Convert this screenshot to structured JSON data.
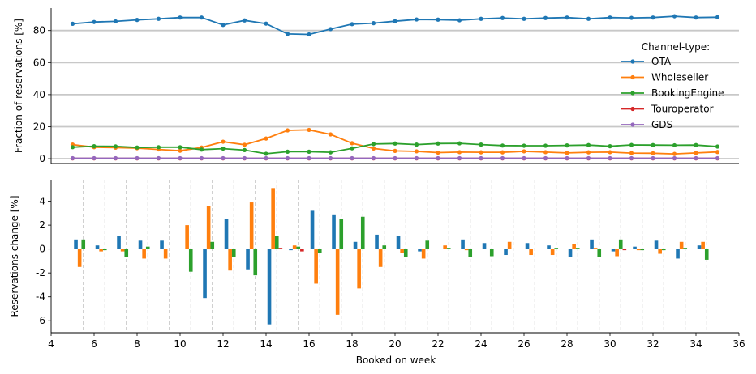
{
  "chart_data": [
    {
      "type": "line",
      "ylabel": "Fraction of reservations [%]",
      "xlim": [
        4,
        36
      ],
      "ylim": [
        -3,
        94
      ],
      "yticks": [
        0,
        20,
        40,
        60,
        80
      ],
      "grid": "horizontal",
      "legend_title": "Channel-type:",
      "legend_position": "right",
      "x": [
        5,
        6,
        7,
        8,
        9,
        10,
        11,
        12,
        13,
        14,
        15,
        16,
        17,
        18,
        19,
        20,
        21,
        22,
        23,
        24,
        25,
        26,
        27,
        28,
        29,
        30,
        31,
        32,
        33,
        34,
        35
      ],
      "series": [
        {
          "name": "OTA",
          "color": "#1f77b4",
          "values": [
            84.2,
            85.3,
            85.7,
            86.6,
            87.3,
            88.1,
            88.1,
            83.5,
            86.3,
            84.3,
            77.9,
            77.6,
            80.9,
            84.0,
            84.6,
            85.8,
            86.9,
            86.8,
            86.4,
            87.3,
            87.8,
            87.3,
            87.8,
            88.1,
            87.3,
            88.1,
            87.9,
            88.1,
            88.9,
            88.1,
            88.3
          ]
        },
        {
          "name": "Wholeseller",
          "color": "#ff7f0e",
          "values": [
            8.8,
            7.2,
            6.9,
            6.6,
            5.8,
            5.0,
            7.0,
            10.6,
            8.7,
            12.6,
            17.7,
            18.0,
            15.2,
            9.7,
            6.4,
            4.9,
            4.6,
            3.8,
            4.1,
            4.0,
            4.0,
            4.6,
            4.1,
            3.6,
            4.0,
            4.1,
            3.5,
            3.4,
            3.0,
            3.6,
            4.2
          ]
        },
        {
          "name": "BookingEngine",
          "color": "#2ca02c",
          "values": [
            7.2,
            7.8,
            7.7,
            7.0,
            7.2,
            7.2,
            5.7,
            6.3,
            5.4,
            3.1,
            4.4,
            4.4,
            4.0,
            6.5,
            9.2,
            9.5,
            8.8,
            9.5,
            9.6,
            8.8,
            8.2,
            8.1,
            8.1,
            8.3,
            8.5,
            7.8,
            8.6,
            8.5,
            8.4,
            8.5,
            7.6
          ]
        },
        {
          "name": "Touroperator",
          "color": "#d62728",
          "values": [
            0.2,
            0.2,
            0.2,
            0.2,
            0.2,
            0.2,
            0.2,
            0.2,
            0.2,
            0.2,
            0.2,
            0.2,
            0.2,
            0.2,
            0.2,
            0.2,
            0.2,
            0.2,
            0.2,
            0.2,
            0.2,
            0.2,
            0.2,
            0.2,
            0.2,
            0.2,
            0.2,
            0.2,
            0.2,
            0.2,
            0.2
          ]
        },
        {
          "name": "GDS",
          "color": "#9467bd",
          "values": [
            0.3,
            0.3,
            0.3,
            0.3,
            0.3,
            0.3,
            0.3,
            0.3,
            0.3,
            0.3,
            0.3,
            0.3,
            0.3,
            0.3,
            0.3,
            0.3,
            0.3,
            0.3,
            0.3,
            0.3,
            0.3,
            0.3,
            0.3,
            0.3,
            0.3,
            0.3,
            0.3,
            0.3,
            0.3,
            0.3,
            0.3
          ]
        }
      ]
    },
    {
      "type": "bar",
      "xlabel": "Booked on week",
      "ylabel": "Reservations change [%]",
      "xlim": [
        4,
        36
      ],
      "ylim": [
        -7,
        5.8
      ],
      "xticks": [
        4,
        6,
        8,
        10,
        12,
        14,
        16,
        18,
        20,
        22,
        24,
        26,
        28,
        30,
        32,
        34,
        36
      ],
      "yticks": [
        -6,
        -4,
        -2,
        0,
        2,
        4
      ],
      "grid": "vertical dashed at week boundaries",
      "x": [
        5.5,
        6.5,
        7.5,
        8.5,
        9.5,
        10.5,
        11.5,
        12.5,
        13.5,
        14.5,
        15.5,
        16.5,
        17.5,
        18.5,
        19.5,
        20.5,
        21.5,
        22.5,
        23.5,
        24.5,
        25.5,
        26.5,
        27.5,
        28.5,
        29.5,
        30.5,
        31.5,
        32.5,
        33.5,
        34.5
      ],
      "series": [
        {
          "name": "OTA",
          "color": "#1f77b4",
          "values": [
            0.8,
            0.3,
            1.1,
            0.7,
            0.7,
            0.0,
            -4.1,
            2.5,
            -1.7,
            -6.3,
            -0.1,
            3.2,
            2.9,
            0.6,
            1.2,
            1.1,
            -0.2,
            0.0,
            0.8,
            0.5,
            -0.5,
            0.5,
            0.3,
            -0.7,
            0.8,
            -0.2,
            0.2,
            0.7,
            -0.8,
            0.3
          ]
        },
        {
          "name": "Wholeseller",
          "color": "#ff7f0e",
          "values": [
            -1.5,
            -0.2,
            -0.2,
            -0.8,
            -0.8,
            2.0,
            3.6,
            -1.8,
            3.9,
            5.1,
            0.3,
            -2.9,
            -5.5,
            -3.3,
            -1.5,
            -0.3,
            -0.8,
            0.3,
            -0.1,
            0.0,
            0.6,
            -0.5,
            -0.5,
            0.4,
            0.1,
            -0.6,
            -0.1,
            -0.4,
            0.6,
            0.6
          ]
        },
        {
          "name": "BookingEngine",
          "color": "#2ca02c",
          "values": [
            0.8,
            -0.1,
            -0.7,
            0.2,
            0.0,
            -1.9,
            0.6,
            -0.7,
            -2.2,
            1.1,
            0.2,
            -0.3,
            2.5,
            2.7,
            0.3,
            -0.7,
            0.7,
            0.1,
            -0.7,
            -0.6,
            0.0,
            0.0,
            0.1,
            0.1,
            -0.7,
            0.8,
            -0.1,
            -0.1,
            0.1,
            -0.9
          ]
        },
        {
          "name": "Touroperator",
          "color": "#d62728",
          "values": [
            0.0,
            0.0,
            0.0,
            0.0,
            0.0,
            0.0,
            0.0,
            0.0,
            0.0,
            0.1,
            -0.2,
            0.0,
            0.0,
            0.0,
            0.0,
            0.0,
            0.0,
            0.0,
            0.0,
            0.0,
            0.0,
            0.0,
            0.0,
            0.0,
            0.0,
            -0.1,
            0.0,
            0.0,
            0.0,
            0.0
          ]
        },
        {
          "name": "GDS",
          "color": "#9467bd",
          "values": [
            0.0,
            0.0,
            0.0,
            0.0,
            0.0,
            0.0,
            0.0,
            0.0,
            0.0,
            0.0,
            0.0,
            0.0,
            0.0,
            0.0,
            0.0,
            0.0,
            0.0,
            0.0,
            0.0,
            0.0,
            0.0,
            0.0,
            0.0,
            0.0,
            0.0,
            0.0,
            0.0,
            0.0,
            0.0,
            0.0
          ]
        }
      ]
    }
  ]
}
